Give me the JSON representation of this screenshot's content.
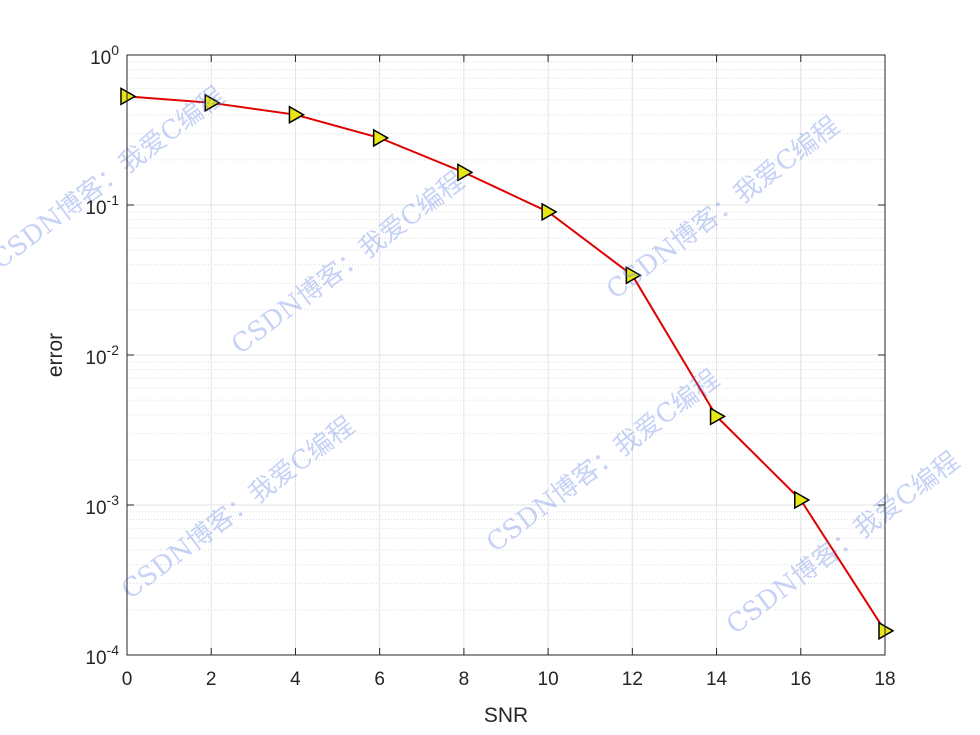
{
  "chart_data": {
    "type": "line",
    "xlabel": "SNR",
    "ylabel": "error",
    "x": [
      0,
      2,
      4,
      6,
      8,
      10,
      12,
      14,
      16,
      18
    ],
    "series": [
      {
        "values": [
          0.53,
          0.48,
          0.4,
          0.28,
          0.165,
          0.09,
          0.034,
          0.0039,
          0.00108,
          0.000145
        ],
        "line_color": "#e00000",
        "marker": "triangle-right",
        "marker_fill": "#e6e619",
        "marker_edge": "#000000"
      }
    ],
    "xlim": [
      0,
      18
    ],
    "ylim": [
      0.0001,
      1
    ],
    "yscale": "log",
    "xticks": [
      "0",
      "2",
      "4",
      "6",
      "8",
      "10",
      "12",
      "14",
      "16",
      "18"
    ],
    "yticks": [
      {
        "base": "10",
        "exp": "-4"
      },
      {
        "base": "10",
        "exp": "-3"
      },
      {
        "base": "10",
        "exp": "-2"
      },
      {
        "base": "10",
        "exp": "-1"
      },
      {
        "base": "10",
        "exp": "0"
      }
    ],
    "grid": true,
    "minor_grid": true
  },
  "watermark": {
    "text": "CSDN博客：我爱C编程",
    "color": "#5b7fe6"
  }
}
